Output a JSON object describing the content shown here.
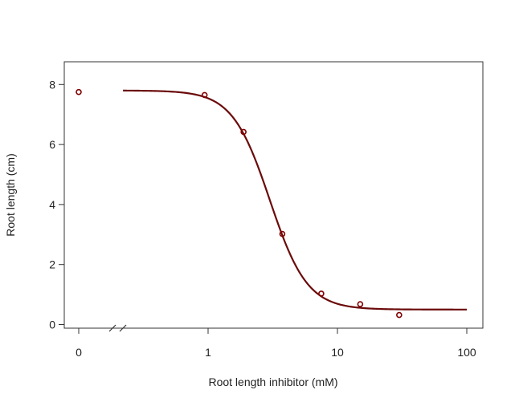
{
  "chart_data": {
    "type": "scatter",
    "title": "",
    "xlabel": "Root length inhibitor (mM)",
    "ylabel": "Root length (cm)",
    "x_scale": "log10 with axis break; zero plotted separately",
    "xlim": [
      0,
      100
    ],
    "ylim": [
      0,
      8
    ],
    "grid": false,
    "legend": "none",
    "x_ticks": [
      {
        "value": 0,
        "label": "0"
      },
      {
        "value": 1,
        "label": "1"
      },
      {
        "value": 10,
        "label": "10"
      },
      {
        "value": 100,
        "label": "100"
      }
    ],
    "y_ticks": [
      {
        "value": 0,
        "label": "0"
      },
      {
        "value": 2,
        "label": "2"
      },
      {
        "value": 4,
        "label": "4"
      },
      {
        "value": 6,
        "label": "6"
      },
      {
        "value": 8,
        "label": "8"
      }
    ],
    "points": [
      {
        "x": 0,
        "y": 7.75
      },
      {
        "x": 0.94,
        "y": 7.65
      },
      {
        "x": 1.88,
        "y": 6.42
      },
      {
        "x": 3.75,
        "y": 3.02
      },
      {
        "x": 7.5,
        "y": 1.03
      },
      {
        "x": 15,
        "y": 0.68
      },
      {
        "x": 30,
        "y": 0.32
      }
    ],
    "fitted_curve": {
      "model": "log-logistic",
      "upper": 7.8,
      "lower": 0.5,
      "ed50": 3.0,
      "slope": 3.0,
      "x_range": [
        0.22,
        100
      ]
    },
    "colors": {
      "points": "#800000",
      "curve": "#6b0a0a",
      "axes": "#333333"
    }
  }
}
